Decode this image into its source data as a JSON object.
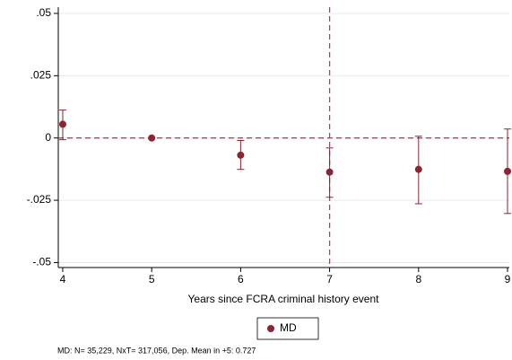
{
  "chart_data": {
    "type": "scatter",
    "x_label": "Years since FCRA criminal history event",
    "note": "MD: N=  35,229, NxT= 317,056, Dep. Mean in +5: 0.727",
    "series": [
      {
        "name": "MD",
        "color": "#8c2433",
        "x": [
          4,
          5,
          6,
          7,
          8,
          9
        ],
        "values": [
          0.0055,
          0,
          -0.0069,
          -0.0137,
          -0.0126,
          -0.0134
        ],
        "lower": [
          -0.0007,
          null,
          -0.0126,
          -0.0238,
          -0.0264,
          -0.0303
        ],
        "upper": [
          0.0112,
          null,
          -0.001,
          -0.004,
          0.0007,
          0.0036
        ]
      }
    ],
    "xlim": [
      3.95,
      9.02
    ],
    "xticks": [
      4,
      5,
      6,
      7,
      8,
      9
    ],
    "ylim": [
      -0.052,
      0.0525
    ],
    "yticks": [
      {
        "value": 0.05,
        "label": ".05"
      },
      {
        "value": 0.025,
        "label": ".025"
      },
      0,
      {
        "value": -0.025,
        "label": "-.025"
      },
      {
        "value": -0.05,
        "label": "-.05"
      }
    ],
    "hline": 0,
    "vline": 7,
    "ref_color": "#c8385a",
    "grid": true
  }
}
